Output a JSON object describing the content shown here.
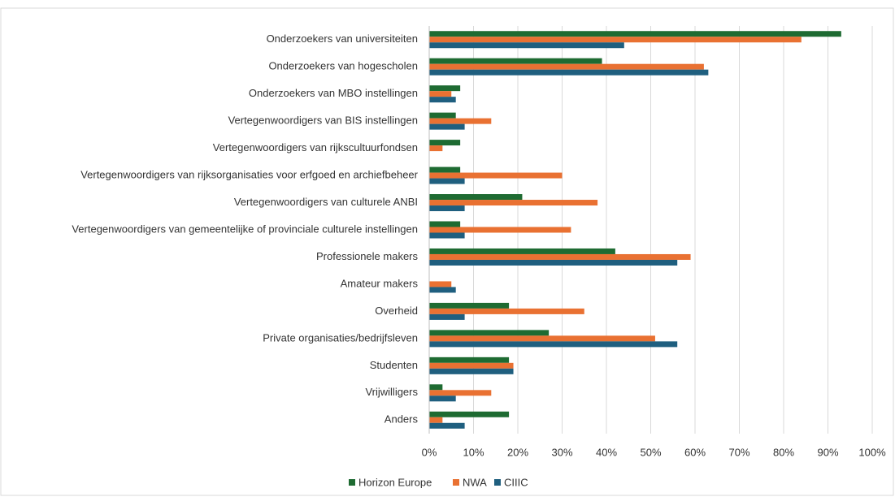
{
  "chart_data": {
    "type": "hbar",
    "categories": [
      "Onderzoekers van universiteiten",
      "Onderzoekers van hogescholen",
      "Onderzoekers van MBO instellingen",
      "Vertegenwoordigers van BIS instellingen",
      "Vertegenwoordigers van rijkscultuurfondsen",
      "Vertegenwoordigers van rijksorganisaties voor erfgoed en archiefbeheer",
      "Vertegenwoordigers van culturele ANBI",
      "Vertegenwoordigers van gemeentelijke of provinciale culturele instellingen",
      "Professionele makers",
      "Amateur makers",
      "Overheid",
      "Private organisaties/bedrijfsleven",
      "Studenten",
      "Vrijwilligers",
      "Anders"
    ],
    "series": [
      {
        "name": "Horizon Europe",
        "color": "#1e6b32",
        "values": [
          93,
          39,
          7,
          6,
          7,
          7,
          21,
          7,
          42,
          0,
          18,
          27,
          18,
          3,
          18
        ]
      },
      {
        "name": "NWA",
        "color": "#e97132",
        "values": [
          84,
          62,
          5,
          14,
          3,
          30,
          38,
          32,
          59,
          5,
          35,
          51,
          19,
          14,
          3
        ]
      },
      {
        "name": "CIIIC",
        "color": "#1f5f7f",
        "values": [
          44,
          63,
          6,
          8,
          0,
          8,
          8,
          8,
          56,
          6,
          8,
          56,
          19,
          6,
          8
        ]
      }
    ],
    "xlim": [
      0,
      100
    ],
    "xticks": [
      {
        "value": 0,
        "label": "0%"
      },
      {
        "value": 10,
        "label": "10%"
      },
      {
        "value": 20,
        "label": "20%"
      },
      {
        "value": 30,
        "label": "30%"
      },
      {
        "value": 40,
        "label": "40%"
      },
      {
        "value": 50,
        "label": "50%"
      },
      {
        "value": 60,
        "label": "60%"
      },
      {
        "value": 70,
        "label": "70%"
      },
      {
        "value": 80,
        "label": "80%"
      },
      {
        "value": 90,
        "label": "90%"
      },
      {
        "value": 100,
        "label": "100%"
      }
    ],
    "grid": true,
    "legend": "bottom"
  }
}
